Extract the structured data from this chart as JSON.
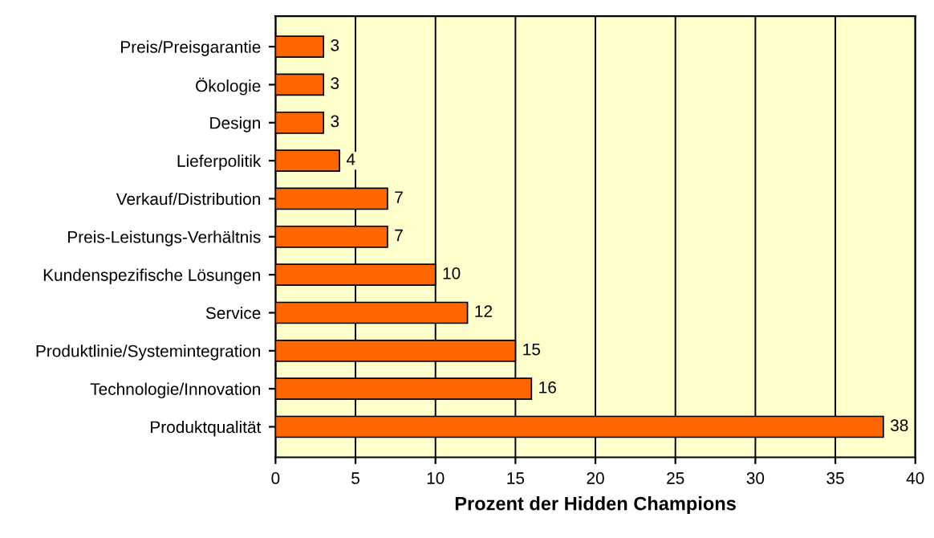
{
  "chart_data": {
    "type": "bar",
    "orientation": "horizontal",
    "xlabel": "Prozent der Hidden Champions",
    "categories": [
      "Preis/Preisgarantie",
      "Ökologie",
      "Design",
      "Lieferpolitik",
      "Verkauf/Distribution",
      "Preis-Leistungs-Verhältnis",
      "Kundenspezifische Lösungen",
      "Service",
      "Produktlinie/Systemintegration",
      "Technologie/Innovation",
      "Produktqualität"
    ],
    "values": [
      3,
      3,
      3,
      4,
      7,
      7,
      10,
      12,
      15,
      16,
      38
    ],
    "color": "#ff6600",
    "data_labels": true,
    "xlim": [
      0,
      40
    ],
    "xticks": [
      0,
      5,
      10,
      15,
      20,
      25,
      30,
      35,
      40
    ],
    "grid": "x",
    "legend": false
  }
}
